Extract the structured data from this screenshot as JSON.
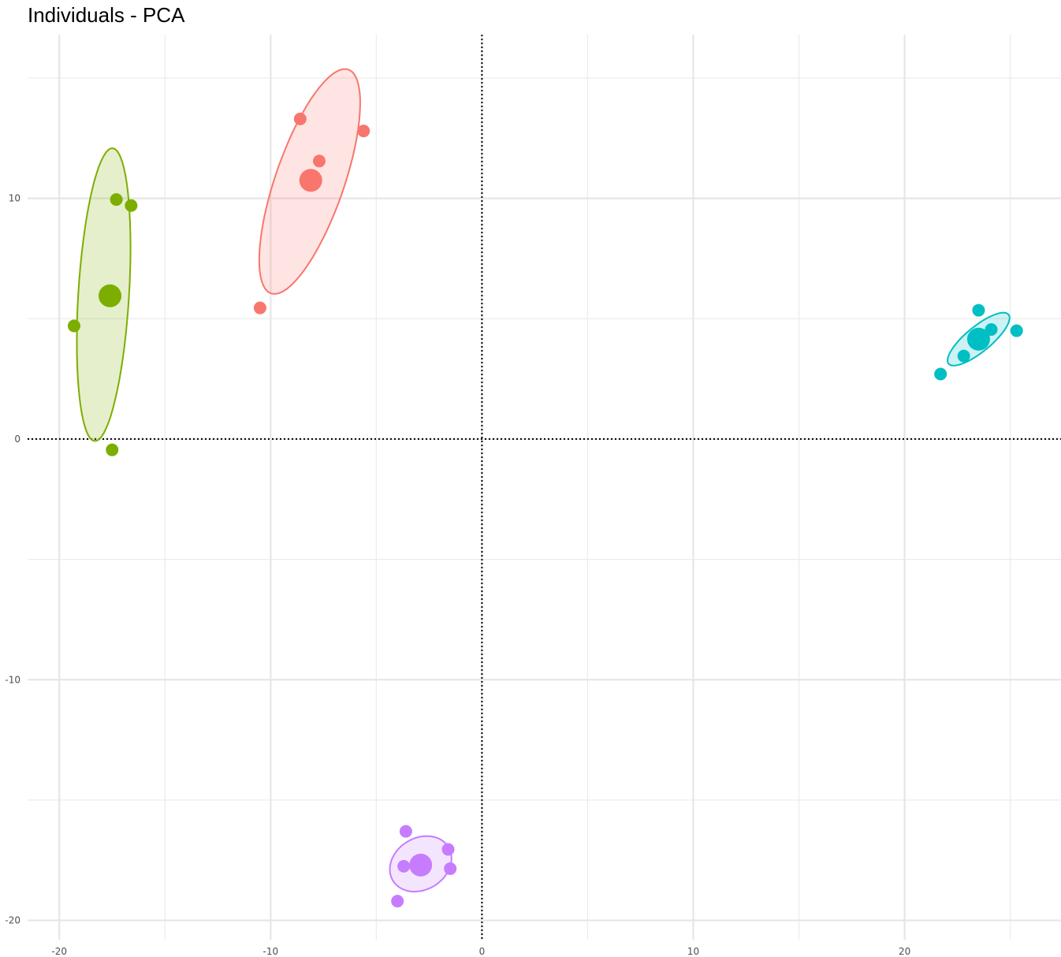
{
  "chart_data": {
    "type": "scatter",
    "title": "Individuals - PCA",
    "xlabel": "",
    "ylabel": "",
    "xlim": [
      -21.5,
      27.4
    ],
    "ylim": [
      -20.8,
      16.8
    ],
    "x_ticks": [
      -20,
      -10,
      0,
      10,
      20
    ],
    "y_ticks": [
      -20,
      -10,
      0,
      10
    ],
    "grid": true,
    "reference_lines": {
      "x": 0,
      "y": 0,
      "style": "dotted"
    },
    "legend": "none",
    "groups": [
      {
        "color": "#7CAE00",
        "points": [
          [
            -17.3,
            9.95
          ],
          [
            -16.6,
            9.7
          ],
          [
            -19.3,
            4.7
          ],
          [
            -17.5,
            -0.45
          ]
        ],
        "centroid": [
          -17.6,
          5.95
        ],
        "ellipse": {
          "cx": -17.9,
          "cy": 6.0,
          "rx": 6.1,
          "ry": 1.2,
          "angle": 86
        }
      },
      {
        "color": "#F8766D",
        "points": [
          [
            -8.6,
            13.3
          ],
          [
            -5.6,
            12.8
          ],
          [
            -7.7,
            11.55
          ],
          [
            -10.5,
            5.45
          ]
        ],
        "centroid": [
          -8.1,
          10.75
        ],
        "ellipse": {
          "cx": -8.15,
          "cy": 10.7,
          "rx": 5.0,
          "ry": 1.6,
          "angle": 68
        }
      },
      {
        "color": "#00BFC4",
        "points": [
          [
            23.5,
            5.35
          ],
          [
            25.3,
            4.5
          ],
          [
            24.1,
            4.55
          ],
          [
            22.8,
            3.45
          ],
          [
            21.7,
            2.7
          ]
        ],
        "centroid": [
          23.5,
          4.15
        ],
        "ellipse": {
          "cx": 23.5,
          "cy": 4.15,
          "rx": 1.75,
          "ry": 0.55,
          "angle": 35
        }
      },
      {
        "color": "#C77CFF",
        "points": [
          [
            -3.6,
            -16.3
          ],
          [
            -1.6,
            -17.05
          ],
          [
            -3.7,
            -17.75
          ],
          [
            -1.5,
            -17.85
          ],
          [
            -4.0,
            -19.2
          ]
        ],
        "centroid": [
          -2.9,
          -17.7
        ],
        "ellipse": {
          "cx": -2.9,
          "cy": -17.65,
          "rx": 1.5,
          "ry": 1.1,
          "angle": 20
        }
      }
    ]
  }
}
